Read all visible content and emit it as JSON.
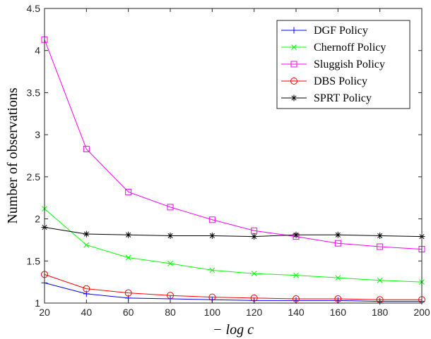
{
  "chart_data": {
    "type": "line",
    "xlabel": "− log c",
    "ylabel": "Number of observations",
    "xlim": [
      20,
      200
    ],
    "ylim": [
      1,
      4.5
    ],
    "x": [
      20,
      40,
      60,
      80,
      100,
      120,
      140,
      160,
      180,
      200
    ],
    "xticks": [
      "20",
      "40",
      "60",
      "80",
      "100",
      "120",
      "140",
      "160",
      "180",
      "200"
    ],
    "yticks": [
      "1",
      "1.5",
      "2",
      "2.5",
      "3",
      "3.5",
      "4",
      "4.5"
    ],
    "grid": false,
    "legend_position": "top-right",
    "series": [
      {
        "name": "DGF Policy",
        "color": "#0000ff",
        "marker": "plus",
        "values": [
          1.24,
          1.11,
          1.06,
          1.05,
          1.04,
          1.03,
          1.03,
          1.03,
          1.02,
          1.02
        ]
      },
      {
        "name": "Chernoff Policy",
        "color": "#00ff00",
        "marker": "x",
        "values": [
          2.12,
          1.69,
          1.54,
          1.47,
          1.39,
          1.35,
          1.33,
          1.3,
          1.27,
          1.25
        ]
      },
      {
        "name": "Sluggish Policy",
        "color": "#ff00ff",
        "marker": "square",
        "values": [
          4.13,
          2.83,
          2.32,
          2.14,
          1.99,
          1.86,
          1.79,
          1.71,
          1.67,
          1.64
        ]
      },
      {
        "name": "DBS Policy",
        "color": "#ff0000",
        "marker": "circle",
        "values": [
          1.34,
          1.17,
          1.12,
          1.09,
          1.07,
          1.06,
          1.05,
          1.05,
          1.04,
          1.04
        ]
      },
      {
        "name": "SPRT Policy",
        "color": "#000000",
        "marker": "asterisk",
        "values": [
          1.9,
          1.82,
          1.81,
          1.8,
          1.8,
          1.79,
          1.81,
          1.81,
          1.8,
          1.79
        ]
      }
    ]
  }
}
